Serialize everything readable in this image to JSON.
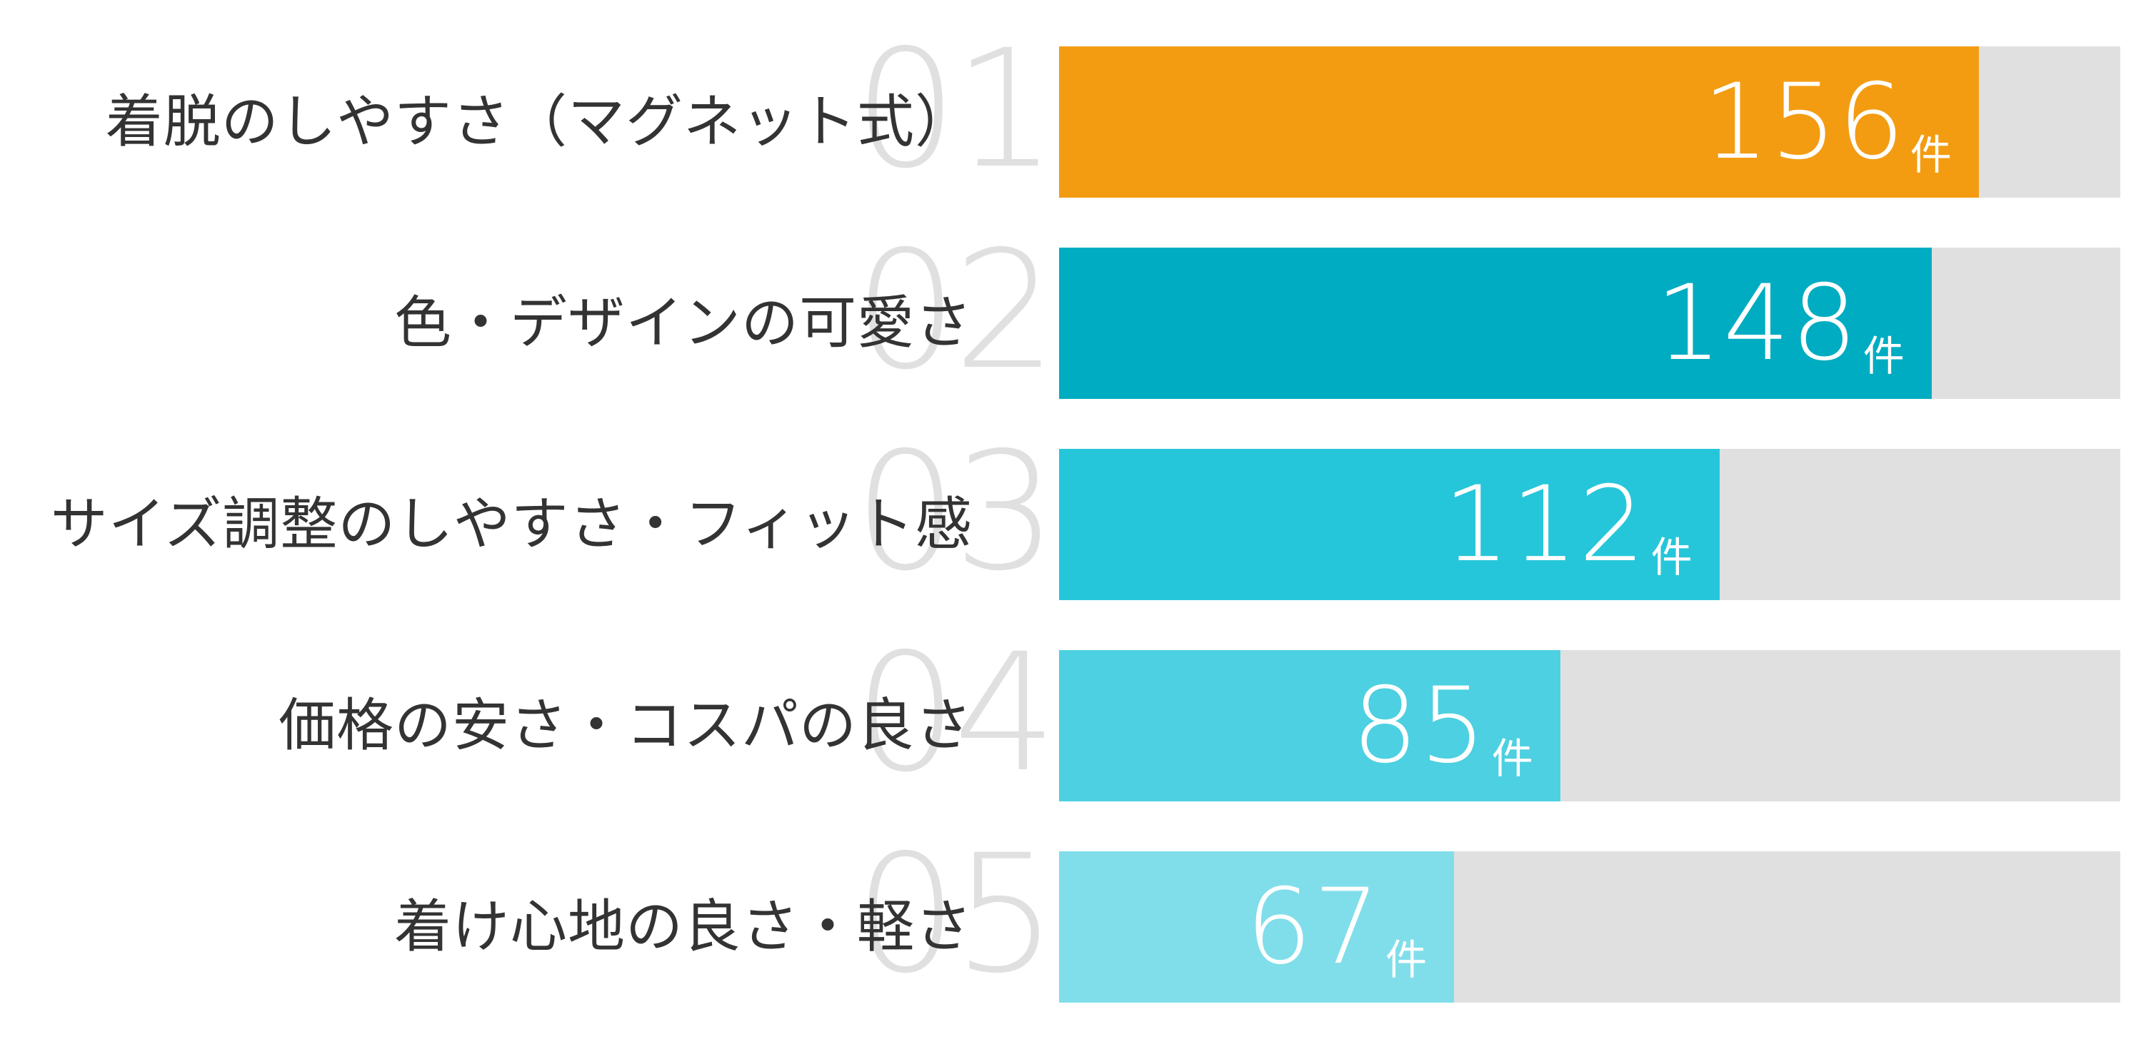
{
  "chart_data": {
    "type": "bar",
    "orientation": "horizontal",
    "title": "",
    "xlabel": "",
    "ylabel": "",
    "unit": "件",
    "xlim": [
      0,
      180
    ],
    "grid": false,
    "legend": null,
    "categories": [
      "着脱のしやすさ（マグネット式）",
      "色・デザインの可愛さ",
      "サイズ調整のしやすさ・フィット感",
      "価格の安さ・コスパの良さ",
      "着け心地の良さ・軽さ"
    ],
    "ranks": [
      "01",
      "02",
      "03",
      "04",
      "05"
    ],
    "values": [
      156,
      148,
      112,
      85,
      67
    ],
    "colors": [
      "#f39c12",
      "#00acc1",
      "#26c6da",
      "#4dd0e1",
      "#80deea"
    ],
    "track_color": "#e0e0e0"
  },
  "rows": [
    {
      "rank": "01",
      "label": "着脱のしやすさ（マグネット式）",
      "value": "156",
      "unit": "件",
      "color": "#f39c12"
    },
    {
      "rank": "02",
      "label": "色・デザインの可愛さ",
      "value": "148",
      "unit": "件",
      "color": "#00acc1"
    },
    {
      "rank": "03",
      "label": "サイズ調整のしやすさ・フィット感",
      "value": "112",
      "unit": "件",
      "color": "#26c6da"
    },
    {
      "rank": "04",
      "label": "価格の安さ・コスパの良さ",
      "value": "85",
      "unit": "件",
      "color": "#4dd0e1"
    },
    {
      "rank": "05",
      "label": "着け心地の良さ・軽さ",
      "value": "67",
      "unit": "件",
      "color": "#80deea"
    }
  ],
  "scale_max": 180
}
